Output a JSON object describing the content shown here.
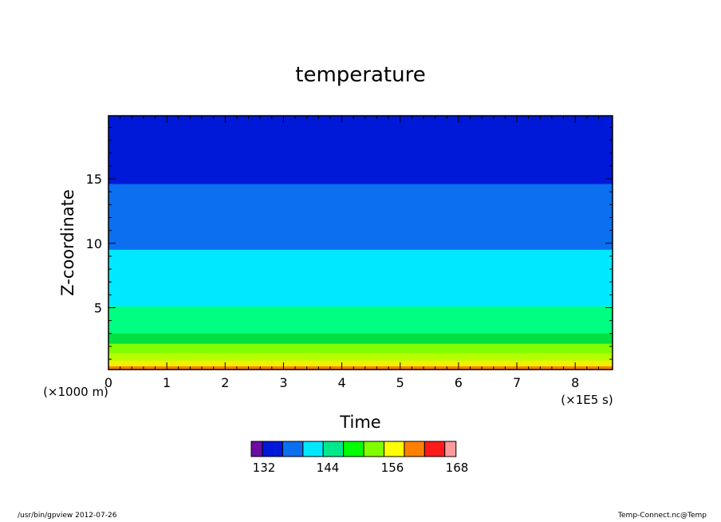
{
  "footer": {
    "left": "/usr/bin/gpview   2012-07-26",
    "right": "Temp-Connect.nc@Temp"
  },
  "chart_data": {
    "type": "heatmap",
    "title": "temperature",
    "xlabel": "Time",
    "ylabel": "Z-coordinate",
    "x_unit_label": "(×1E5 s)",
    "y_unit_label": "(×1000 m)",
    "xlim": [
      0,
      8.64
    ],
    "ylim": [
      0.2,
      19.9
    ],
    "x_ticks": [
      0,
      1,
      2,
      3,
      4,
      5,
      6,
      7,
      8
    ],
    "x_tick_labels": [
      "0",
      "1",
      "2",
      "3",
      "4",
      "5",
      "6",
      "7",
      "8"
    ],
    "y_ticks": [
      5,
      10,
      15
    ],
    "y_tick_labels": [
      "5",
      "10",
      "15"
    ],
    "colors": {
      "background": "#ffffff",
      "axis": "#000000"
    },
    "bands": [
      {
        "level_range": [
          162,
          165
        ],
        "color": "#ff8000",
        "z_top": 0.45
      },
      {
        "level_range": [
          159,
          162
        ],
        "color": "#f0f000",
        "z_top": 0.9
      },
      {
        "level_range": [
          156,
          159
        ],
        "color": "#b4ff00",
        "z_top": 1.5
      },
      {
        "level_range": [
          153,
          156
        ],
        "color": "#80ff00",
        "z_top": 2.2
      },
      {
        "level_range": [
          150,
          153
        ],
        "color": "#00e040",
        "z_top": 3.0
      },
      {
        "level_range": [
          147,
          150
        ],
        "color": "#00ff80",
        "z_top": 5.1
      },
      {
        "level_range": [
          144,
          147
        ],
        "color": "#00e8ff",
        "z_top": 9.5
      },
      {
        "level_range": [
          141,
          144
        ],
        "color": "#0c6ff0",
        "z_top": 14.6
      },
      {
        "level_range": [
          138,
          141
        ],
        "color": "#0018d8",
        "z_top": 19.9
      }
    ],
    "colorbar": {
      "tick_labels": [
        "132",
        "144",
        "156",
        "168"
      ],
      "colors": [
        "#6a0da0",
        "#0018d8",
        "#0c6ff0",
        "#00e8ff",
        "#00e88c",
        "#00ff00",
        "#80ff00",
        "#ffff00",
        "#ff8000",
        "#ff1a1a",
        "#ff9a9a"
      ]
    }
  }
}
